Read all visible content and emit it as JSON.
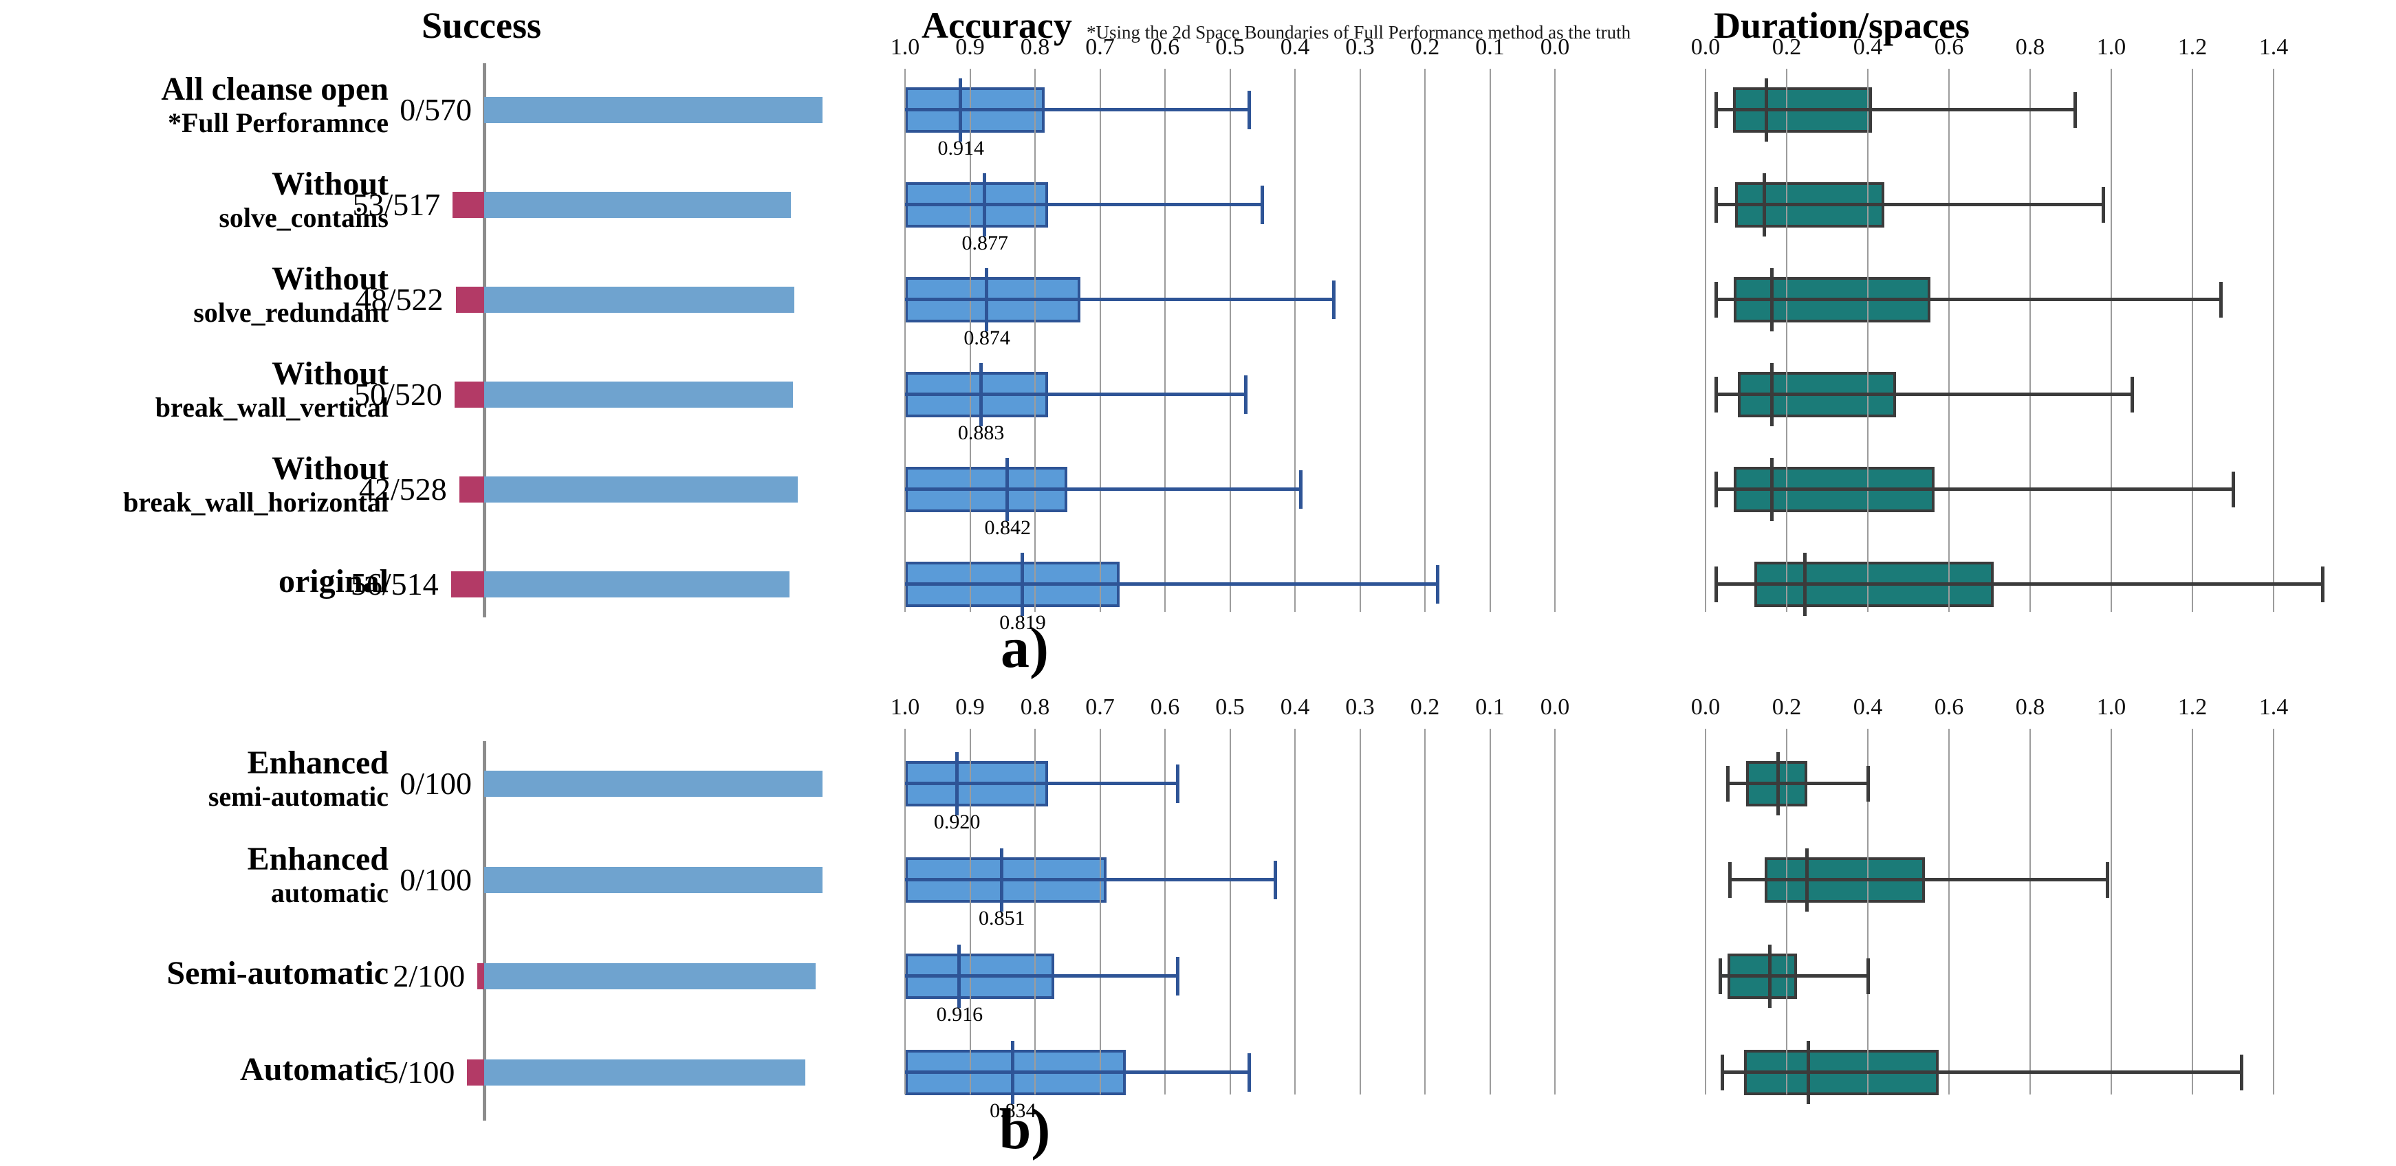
{
  "page": {
    "background": "#ffffff"
  },
  "header": {
    "success_title": "Success",
    "accuracy_title": "Accuracy",
    "accuracy_note": "*Using the 2d Space Boundaries of Full Performance method as the truth",
    "duration_title": "Duration/spaces"
  },
  "colors": {
    "success_bar_blue": "#6FA3CF",
    "success_bar_red": "#B33A66",
    "axis_gray": "#8C8C8C",
    "grid_gray": "#9C9C9C",
    "accuracy_box_fill": "#5A9BD8",
    "accuracy_box_border": "#2E5496",
    "duration_box_fill": "#1B7B78",
    "duration_box_border": "#3B3B3B",
    "text_black": "#000000"
  },
  "axes": {
    "accuracy": {
      "tick_labels": [
        "1.0",
        "0.9",
        "0.8",
        "0.7",
        "0.6",
        "0.5",
        "0.4",
        "0.3",
        "0.2",
        "0.1",
        "0.0"
      ],
      "range": [
        1.0,
        0.0
      ],
      "direction": "reversed",
      "grid": true
    },
    "duration": {
      "tick_labels": [
        "0.0",
        "0.2",
        "0.4",
        "0.6",
        "0.8",
        "1.0",
        "1.2",
        "1.4"
      ],
      "range": [
        0.0,
        1.4
      ],
      "grid": true
    }
  },
  "chart_data": [
    {
      "type": "bar+boxplot",
      "panel": "a",
      "caption": "a)",
      "success_scale_total": 570,
      "rows": [
        {
          "label_lines": [
            "All cleanse open",
            "*Full Perforamnce"
          ],
          "success": {
            "label": "0/570",
            "red_value": 0,
            "blue_value": 570
          },
          "accuracy": {
            "box_from": 1.0,
            "box_to": 0.785,
            "median": 0.914,
            "median_label": "0.914",
            "whisker_end": 0.47
          },
          "duration": {
            "whisker_min": 0.025,
            "box_from": 0.068,
            "median": 0.15,
            "box_to": 0.41,
            "whisker_max": 0.91
          }
        },
        {
          "label_lines": [
            "Without",
            "solve_contains"
          ],
          "success": {
            "label": "53/517",
            "red_value": 53,
            "blue_value": 517
          },
          "accuracy": {
            "box_from": 1.0,
            "box_to": 0.78,
            "median": 0.877,
            "median_label": "0.877",
            "whisker_end": 0.45
          },
          "duration": {
            "whisker_min": 0.025,
            "box_from": 0.073,
            "median": 0.145,
            "box_to": 0.44,
            "whisker_max": 0.98
          }
        },
        {
          "label_lines": [
            "Without",
            "solve_redundant"
          ],
          "success": {
            "label": "48/522",
            "red_value": 48,
            "blue_value": 522
          },
          "accuracy": {
            "box_from": 1.0,
            "box_to": 0.73,
            "median": 0.874,
            "median_label": "0.874",
            "whisker_end": 0.34
          },
          "duration": {
            "whisker_min": 0.025,
            "box_from": 0.07,
            "median": 0.165,
            "box_to": 0.555,
            "whisker_max": 1.27
          }
        },
        {
          "label_lines": [
            "Without",
            "break_wall_vertical"
          ],
          "success": {
            "label": "50/520",
            "red_value": 50,
            "blue_value": 520
          },
          "accuracy": {
            "box_from": 1.0,
            "box_to": 0.78,
            "median": 0.883,
            "median_label": "0.883",
            "whisker_end": 0.475
          },
          "duration": {
            "whisker_min": 0.025,
            "box_from": 0.08,
            "median": 0.165,
            "box_to": 0.47,
            "whisker_max": 1.05
          }
        },
        {
          "label_lines": [
            "Without",
            "break_wall_horizontal"
          ],
          "success": {
            "label": "42/528",
            "red_value": 42,
            "blue_value": 528
          },
          "accuracy": {
            "box_from": 1.0,
            "box_to": 0.75,
            "median": 0.842,
            "median_label": "0.842",
            "whisker_end": 0.39
          },
          "duration": {
            "whisker_min": 0.025,
            "box_from": 0.07,
            "median": 0.165,
            "box_to": 0.565,
            "whisker_max": 1.3
          }
        },
        {
          "label_lines": [
            "original"
          ],
          "success": {
            "label": "56/514",
            "red_value": 56,
            "blue_value": 514
          },
          "accuracy": {
            "box_from": 1.0,
            "box_to": 0.67,
            "median": 0.819,
            "median_label": "0.819",
            "whisker_end": 0.18
          },
          "duration": {
            "whisker_min": 0.025,
            "box_from": 0.12,
            "median": 0.245,
            "box_to": 0.71,
            "whisker_max": 1.52
          }
        }
      ]
    },
    {
      "type": "bar+boxplot",
      "panel": "b",
      "caption": "b)",
      "success_scale_total": 100,
      "rows": [
        {
          "label_lines": [
            "Enhanced",
            "semi-automatic"
          ],
          "success": {
            "label": "0/100",
            "red_value": 0,
            "blue_value": 100
          },
          "accuracy": {
            "box_from": 1.0,
            "box_to": 0.78,
            "median": 0.92,
            "median_label": "0.920",
            "whisker_end": 0.58
          },
          "duration": {
            "whisker_min": 0.055,
            "box_from": 0.1,
            "median": 0.18,
            "box_to": 0.25,
            "whisker_max": 0.4
          }
        },
        {
          "label_lines": [
            "Enhanced",
            "automatic"
          ],
          "success": {
            "label": "0/100",
            "red_value": 0,
            "blue_value": 100
          },
          "accuracy": {
            "box_from": 1.0,
            "box_to": 0.69,
            "median": 0.851,
            "median_label": "0.851",
            "whisker_end": 0.43
          },
          "duration": {
            "whisker_min": 0.06,
            "box_from": 0.145,
            "median": 0.25,
            "box_to": 0.54,
            "whisker_max": 0.99
          }
        },
        {
          "label_lines": [
            "Semi-automatic"
          ],
          "success": {
            "label": "2/100",
            "red_value": 2,
            "blue_value": 98
          },
          "accuracy": {
            "box_from": 1.0,
            "box_to": 0.77,
            "median": 0.916,
            "median_label": "0.916",
            "whisker_end": 0.58
          },
          "duration": {
            "whisker_min": 0.035,
            "box_from": 0.055,
            "median": 0.16,
            "box_to": 0.225,
            "whisker_max": 0.4
          }
        },
        {
          "label_lines": [
            "Automatic"
          ],
          "success": {
            "label": "5/100",
            "red_value": 5,
            "blue_value": 95
          },
          "accuracy": {
            "box_from": 1.0,
            "box_to": 0.66,
            "median": 0.834,
            "median_label": "0.834",
            "whisker_end": 0.47
          },
          "duration": {
            "whisker_min": 0.04,
            "box_from": 0.095,
            "median": 0.255,
            "box_to": 0.575,
            "whisker_max": 1.32
          }
        }
      ]
    }
  ]
}
